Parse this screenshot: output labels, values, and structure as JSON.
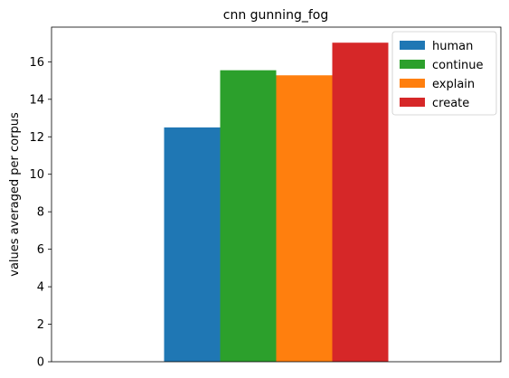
{
  "chart_data": {
    "type": "bar",
    "title": "cnn gunning_fog",
    "xlabel": "",
    "ylabel": "values averaged per corpus",
    "ylim": [
      0,
      17.85
    ],
    "yticks": [
      0,
      2,
      4,
      6,
      8,
      10,
      12,
      14,
      16
    ],
    "grid": false,
    "legend": "top-right",
    "categories": [
      ""
    ],
    "series": [
      {
        "name": "human",
        "values": [
          12.5
        ],
        "color": "#1f77b4"
      },
      {
        "name": "continue",
        "values": [
          15.55
        ],
        "color": "#2ca02c"
      },
      {
        "name": "explain",
        "values": [
          15.28
        ],
        "color": "#ff7f0e"
      },
      {
        "name": "create",
        "values": [
          17.02
        ],
        "color": "#d62728"
      }
    ]
  }
}
